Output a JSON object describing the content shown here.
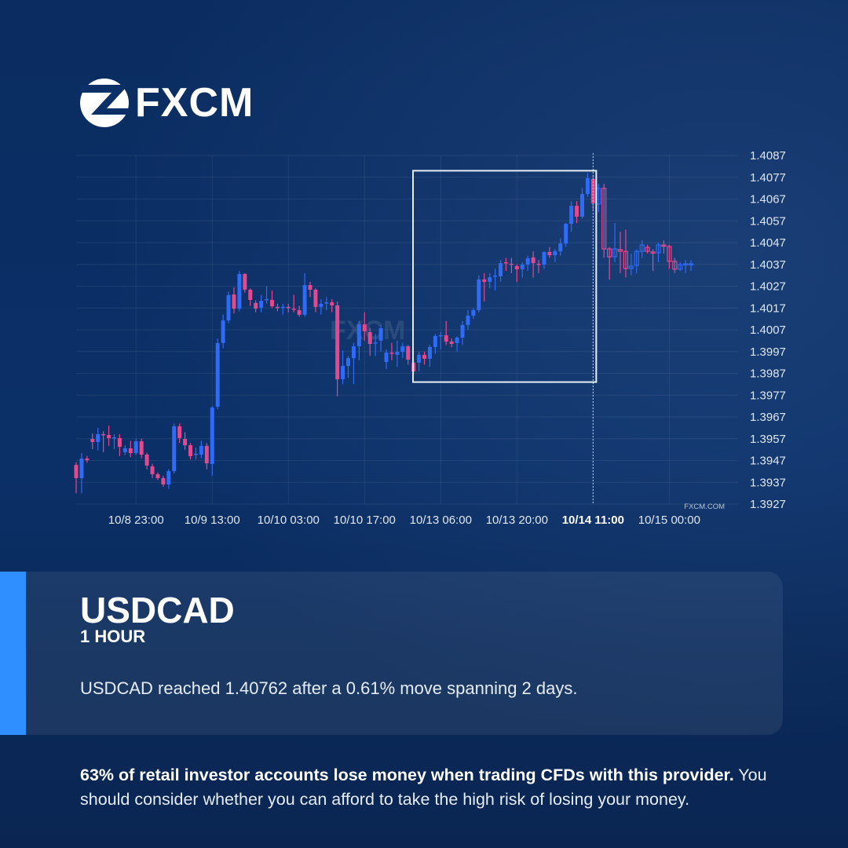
{
  "brand": {
    "logo_text": "FXCM",
    "watermark": "FXCM",
    "source_label": "FXCM.COM"
  },
  "card": {
    "symbol": "USDCAD",
    "timeframe": "1 HOUR",
    "summary": "USDCAD reached 1.40762 after a 0.61% move spanning 2 days."
  },
  "disclaimer": {
    "bold": "63% of retail investor accounts lose money when trading CFDs with this provider.",
    "rest": " You should consider whether you can afford to take the high risk of losing your money."
  },
  "colors": {
    "up": "#2f6bf5",
    "down": "#e2498f",
    "accent": "#2f8fff",
    "highlight_box": "#e8eef8"
  },
  "chart_data": {
    "type": "candlestick",
    "title": "",
    "xlabel": "",
    "ylabel": "",
    "ylim": [
      1.3927,
      1.4087
    ],
    "y_ticks": [
      "1.4087",
      "1.4077",
      "1.4067",
      "1.4057",
      "1.4047",
      "1.4037",
      "1.4027",
      "1.4017",
      "1.4007",
      "1.3997",
      "1.3987",
      "1.3977",
      "1.3967",
      "1.3957",
      "1.3947",
      "1.3937",
      "1.3927"
    ],
    "x_ticks": [
      "10/8 23:00",
      "10/9 13:00",
      "10/10 03:00",
      "10/10 17:00",
      "10/13 06:00",
      "10/13 20:00",
      "10/14 11:00",
      "10/15 00:00"
    ],
    "highlighted_x_tick": "10/14 11:00",
    "grid": true,
    "highlight_box": {
      "price_low": 1.3983,
      "price_high": 1.408
    },
    "marker_line_at": "10/14 11:00",
    "ohlc": [
      [
        1.3945,
        1.39462,
        1.3932,
        1.39389
      ],
      [
        1.39389,
        1.39504,
        1.3932,
        1.39479
      ],
      [
        1.39479,
        1.39491,
        1.3946,
        1.39472
      ],
      [
        1.39569,
        1.39594,
        1.39522,
        1.39555
      ],
      [
        1.39555,
        1.3962,
        1.39516,
        1.39591
      ],
      [
        1.39591,
        1.39605,
        1.39508,
        1.39587
      ],
      [
        1.39587,
        1.3963,
        1.39537,
        1.39573
      ],
      [
        1.39573,
        1.3959,
        1.39522,
        1.39576
      ],
      [
        1.39573,
        1.3959,
        1.3949,
        1.39533
      ],
      [
        1.39508,
        1.3954,
        1.39495,
        1.39526
      ],
      [
        1.39526,
        1.3956,
        1.39485,
        1.39504
      ],
      [
        1.39504,
        1.3957,
        1.39495,
        1.39558
      ],
      [
        1.39558,
        1.3957,
        1.3948,
        1.39497
      ],
      [
        1.39497,
        1.39505,
        1.3943,
        1.39447
      ],
      [
        1.39443,
        1.39455,
        1.3939,
        1.39407
      ],
      [
        1.39407,
        1.39415,
        1.3938,
        1.39389
      ],
      [
        1.39389,
        1.394,
        1.3935,
        1.3936
      ],
      [
        1.3936,
        1.3943,
        1.3934,
        1.39421
      ],
      [
        1.39421,
        1.3964,
        1.3941,
        1.39627
      ],
      [
        1.39627,
        1.3964,
        1.3955,
        1.39573
      ],
      [
        1.39569,
        1.396,
        1.3952,
        1.3954
      ],
      [
        1.3954,
        1.3955,
        1.39475,
        1.3949
      ],
      [
        1.39497,
        1.3953,
        1.39475,
        1.39501
      ],
      [
        1.39497,
        1.3956,
        1.3948,
        1.39537
      ],
      [
        1.39537,
        1.3955,
        1.3943,
        1.39457
      ],
      [
        1.39454,
        1.3972,
        1.394,
        1.39713
      ],
      [
        1.39717,
        1.4003,
        1.39705,
        1.40009
      ],
      [
        1.40009,
        1.4014,
        1.39985,
        1.40113
      ],
      [
        1.40113,
        1.40245,
        1.401,
        1.40229
      ],
      [
        1.40232,
        1.40265,
        1.40145,
        1.40167
      ],
      [
        1.40167,
        1.4034,
        1.40155,
        1.40326
      ],
      [
        1.40326,
        1.4033,
        1.4024,
        1.40254
      ],
      [
        1.40254,
        1.4026,
        1.4018,
        1.40207
      ],
      [
        1.40193,
        1.40205,
        1.4015,
        1.40167
      ],
      [
        1.40171,
        1.4023,
        1.4015,
        1.40203
      ],
      [
        1.40207,
        1.4027,
        1.4019,
        1.40211
      ],
      [
        1.40207,
        1.4025,
        1.4017,
        1.40178
      ],
      [
        1.40175,
        1.4019,
        1.40155,
        1.40171
      ],
      [
        1.40171,
        1.4019,
        1.4014,
        1.40175
      ],
      [
        1.40175,
        1.4019,
        1.4015,
        1.40171
      ],
      [
        1.40167,
        1.4023,
        1.4015,
        1.40164
      ],
      [
        1.4016,
        1.4018,
        1.4013,
        1.40139
      ],
      [
        1.40139,
        1.4033,
        1.4013,
        1.40275
      ],
      [
        1.40275,
        1.4029,
        1.4022,
        1.40254
      ],
      [
        1.40254,
        1.4026,
        1.4015,
        1.40175
      ],
      [
        1.40175,
        1.4021,
        1.4014,
        1.40189
      ],
      [
        1.40193,
        1.4022,
        1.4016,
        1.40196
      ],
      [
        1.40196,
        1.4021,
        1.4015,
        1.40182
      ],
      [
        1.40182,
        1.402,
        1.39764,
        1.39843
      ],
      [
        1.39843,
        1.39975,
        1.3982,
        1.39904
      ],
      [
        1.39904,
        1.3995,
        1.3985,
        1.3994
      ],
      [
        1.3994,
        1.4001,
        1.3982,
        1.39994
      ],
      [
        1.39994,
        1.4011,
        1.3993,
        1.40095
      ],
      [
        1.40095,
        1.4015,
        1.4002,
        1.40063
      ],
      [
        1.40059,
        1.4008,
        1.3995,
        1.40005
      ],
      [
        1.40009,
        1.4005,
        1.3995,
        1.40012
      ],
      [
        1.4002,
        1.4009,
        1.3997,
        1.40077
      ],
      [
        1.39922,
        1.3998,
        1.3989,
        1.39965
      ],
      [
        1.39965,
        1.4001,
        1.3993,
        1.39962
      ],
      [
        1.39955,
        1.4002,
        1.399,
        1.39969
      ],
      [
        1.39969,
        1.4001,
        1.3994,
        1.39994
      ],
      [
        1.39994,
        1.4,
        1.3991,
        1.39933
      ],
      [
        1.39919,
        1.3993,
        1.3986,
        1.39879
      ],
      [
        1.39919,
        1.3997,
        1.3988,
        1.39955
      ],
      [
        1.39955,
        1.3997,
        1.3991,
        1.39937
      ],
      [
        1.39937,
        1.4,
        1.399,
        1.39991
      ],
      [
        1.39991,
        1.4005,
        1.3996,
        1.40041
      ],
      [
        1.40041,
        1.4006,
        1.3998,
        1.40045
      ],
      [
        1.40045,
        1.4011,
        1.4,
        1.40016
      ],
      [
        1.40016,
        1.4003,
        1.3999,
        1.40005
      ],
      [
        1.40009,
        1.4004,
        1.3997,
        1.40034
      ],
      [
        1.40034,
        1.4011,
        1.4,
        1.40092
      ],
      [
        1.40092,
        1.4016,
        1.4007,
        1.40135
      ],
      [
        1.40135,
        1.4017,
        1.4012,
        1.4016
      ],
      [
        1.4016,
        1.4032,
        1.4015,
        1.40301
      ],
      [
        1.40301,
        1.4033,
        1.402,
        1.4029
      ],
      [
        1.4029,
        1.4033,
        1.4026,
        1.40311
      ],
      [
        1.40315,
        1.4035,
        1.4025,
        1.40319
      ],
      [
        1.40315,
        1.4039,
        1.4029,
        1.40376
      ],
      [
        1.4038,
        1.404,
        1.4034,
        1.40376
      ],
      [
        1.40373,
        1.404,
        1.4033,
        1.40369
      ],
      [
        1.40362,
        1.4037,
        1.4029,
        1.40348
      ],
      [
        1.40348,
        1.4038,
        1.4031,
        1.40369
      ],
      [
        1.40369,
        1.4041,
        1.4034,
        1.40398
      ],
      [
        1.40402,
        1.4043,
        1.4031,
        1.40376
      ],
      [
        1.40373,
        1.4039,
        1.4033,
        1.40369
      ],
      [
        1.40369,
        1.4043,
        1.4035,
        1.40427
      ],
      [
        1.40427,
        1.4045,
        1.404,
        1.40412
      ],
      [
        1.40412,
        1.4044,
        1.4038,
        1.4043
      ],
      [
        1.4043,
        1.4049,
        1.4041,
        1.40466
      ],
      [
        1.40466,
        1.4056,
        1.4045,
        1.40556
      ],
      [
        1.40556,
        1.4066,
        1.4052,
        1.40639
      ],
      [
        1.40639,
        1.4066,
        1.4056,
        1.40589
      ],
      [
        1.40589,
        1.4072,
        1.4058,
        1.40693
      ],
      [
        1.40693,
        1.4079,
        1.4068,
        1.40766
      ],
      [
        1.40762,
        1.4078,
        1.4062,
        1.4065
      ],
      [
        1.40647,
        1.4074,
        1.4061,
        1.40719
      ],
      [
        1.40719,
        1.4074,
        1.404,
        1.40441
      ],
      [
        1.40441,
        1.4045,
        1.403,
        1.40405
      ],
      [
        1.40405,
        1.4056,
        1.4038,
        1.40441
      ],
      [
        1.40438,
        1.4052,
        1.4033,
        1.4043
      ],
      [
        1.4043,
        1.4053,
        1.4031,
        1.40351
      ],
      [
        1.40351,
        1.4042,
        1.4032,
        1.40362
      ],
      [
        1.40366,
        1.4044,
        1.4033,
        1.4043
      ],
      [
        1.4043,
        1.4048,
        1.404,
        1.40459
      ],
      [
        1.40448,
        1.4046,
        1.4042,
        1.4043
      ],
      [
        1.40427,
        1.4044,
        1.4034,
        1.40423
      ],
      [
        1.40423,
        1.4047,
        1.4038,
        1.40459
      ],
      [
        1.40459,
        1.4048,
        1.4042,
        1.40456
      ],
      [
        1.40452,
        1.4046,
        1.4035,
        1.40384
      ],
      [
        1.40384,
        1.404,
        1.4033,
        1.40348
      ],
      [
        1.40348,
        1.4038,
        1.4034,
        1.40369
      ],
      [
        1.40369,
        1.4039,
        1.4033,
        1.40373
      ],
      [
        1.40369,
        1.4039,
        1.4034,
        1.40373
      ]
    ]
  }
}
